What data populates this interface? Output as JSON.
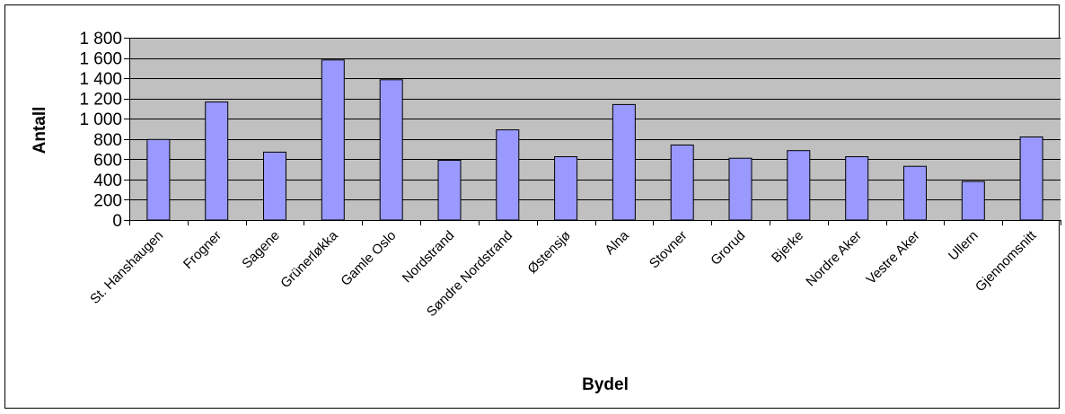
{
  "chart_data": {
    "type": "bar",
    "title": "",
    "xlabel": "Bydel",
    "ylabel": "Antall",
    "ylim": [
      0,
      1800
    ],
    "yticks": [
      0,
      200,
      400,
      600,
      800,
      1000,
      1200,
      1400,
      1600,
      1800
    ],
    "ytick_labels": [
      "0",
      "200",
      "400",
      "600",
      "800",
      "1 000",
      "1 200",
      "1 400",
      "1 600",
      "1 800"
    ],
    "grid": true,
    "legend": "none",
    "categories": [
      "St. Hanshaugen",
      "Frogner",
      "Sagene",
      "Grünerløkka",
      "Gamle Oslo",
      "Nordstrand",
      "Søndre Nordstrand",
      "Østensjø",
      "Alna",
      "Stovner",
      "Grorud",
      "Bjerke",
      "Nordre Aker",
      "Vestre Aker",
      "Ullern",
      "Gjennomsnitt"
    ],
    "values": [
      795,
      1165,
      670,
      1580,
      1385,
      590,
      890,
      625,
      1140,
      740,
      610,
      685,
      625,
      530,
      380,
      820
    ],
    "colors": {
      "bar": "#9999ff",
      "bar_stroke": "#000000",
      "plot_bg": "#c0c0c0",
      "grid": "#000000"
    }
  }
}
